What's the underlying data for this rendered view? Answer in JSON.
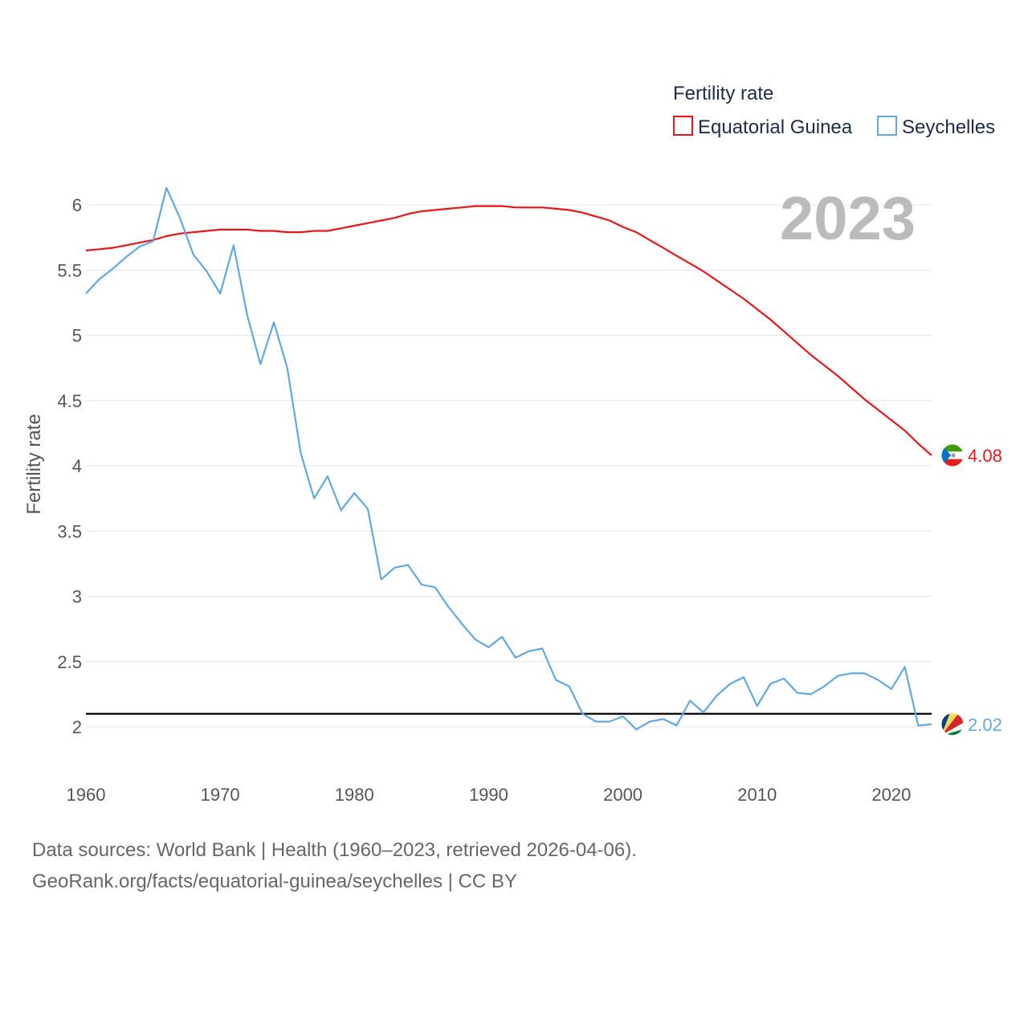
{
  "chart_data": {
    "type": "line",
    "title": "Fertility rate",
    "ylabel": "Fertility rate",
    "xlabel": "",
    "current_year": "2023",
    "xlim": [
      1960,
      2023
    ],
    "ylim": [
      1.6,
      6.4
    ],
    "x_ticks": [
      1960,
      1970,
      1980,
      1990,
      2000,
      2010,
      2020
    ],
    "y_ticks": [
      2,
      2.5,
      3,
      3.5,
      4,
      4.5,
      5,
      5.5,
      6
    ],
    "y_tick_labels": [
      "2",
      "2.5",
      "3",
      "3.5",
      "4",
      "4.5",
      "5",
      "5.5",
      "6"
    ],
    "x_tick_labels": [
      "1960",
      "1970",
      "1980",
      "1990",
      "2000",
      "2010",
      "2020"
    ],
    "reference_line": {
      "value": 2.1,
      "color": "#000000"
    },
    "legend_position": "top-right",
    "years": [
      1960,
      1961,
      1962,
      1963,
      1964,
      1965,
      1966,
      1967,
      1968,
      1969,
      1970,
      1971,
      1972,
      1973,
      1974,
      1975,
      1976,
      1977,
      1978,
      1979,
      1980,
      1981,
      1982,
      1983,
      1984,
      1985,
      1986,
      1987,
      1988,
      1989,
      1990,
      1991,
      1992,
      1993,
      1994,
      1995,
      1996,
      1997,
      1998,
      1999,
      2000,
      2001,
      2002,
      2003,
      2004,
      2005,
      2006,
      2007,
      2008,
      2009,
      2010,
      2011,
      2012,
      2013,
      2014,
      2015,
      2016,
      2017,
      2018,
      2019,
      2020,
      2021,
      2022,
      2023
    ],
    "series": [
      {
        "name": "Equatorial Guinea",
        "color": "#e8161b",
        "end_value_label": "4.08",
        "values": [
          5.65,
          5.66,
          5.67,
          5.69,
          5.71,
          5.73,
          5.76,
          5.78,
          5.79,
          5.8,
          5.81,
          5.81,
          5.81,
          5.8,
          5.8,
          5.79,
          5.79,
          5.8,
          5.8,
          5.82,
          5.84,
          5.86,
          5.88,
          5.9,
          5.93,
          5.95,
          5.96,
          5.97,
          5.98,
          5.99,
          5.99,
          5.99,
          5.98,
          5.98,
          5.98,
          5.97,
          5.96,
          5.94,
          5.91,
          5.88,
          5.83,
          5.79,
          5.73,
          5.67,
          5.61,
          5.55,
          5.49,
          5.42,
          5.35,
          5.28,
          5.2,
          5.12,
          5.03,
          4.94,
          4.85,
          4.77,
          4.69,
          4.6,
          4.51,
          4.43,
          4.35,
          4.27,
          4.17,
          4.08
        ]
      },
      {
        "name": "Seychelles",
        "color": "#62a8e3",
        "end_value_label": "2.02",
        "values": [
          5.32,
          5.43,
          5.51,
          5.6,
          5.68,
          5.72,
          6.13,
          5.9,
          5.62,
          5.49,
          5.32,
          5.69,
          5.16,
          4.78,
          5.1,
          4.75,
          4.1,
          3.75,
          3.92,
          3.66,
          3.79,
          3.67,
          3.13,
          3.22,
          3.24,
          3.09,
          3.07,
          2.92,
          2.79,
          2.67,
          2.61,
          2.69,
          2.53,
          2.58,
          2.6,
          2.36,
          2.31,
          2.1,
          2.04,
          2.04,
          2.08,
          1.98,
          2.04,
          2.06,
          2.01,
          2.2,
          2.11,
          2.24,
          2.33,
          2.38,
          2.16,
          2.33,
          2.37,
          2.26,
          2.25,
          2.31,
          2.39,
          2.41,
          2.41,
          2.36,
          2.29,
          2.46,
          2.01,
          2.02
        ]
      }
    ]
  },
  "footer": {
    "line1": "Data sources: World Bank | Health (1960–2023, retrieved 2026-04-06).",
    "line2": "GeoRank.org/facts/equatorial-guinea/seychelles | CC BY"
  }
}
